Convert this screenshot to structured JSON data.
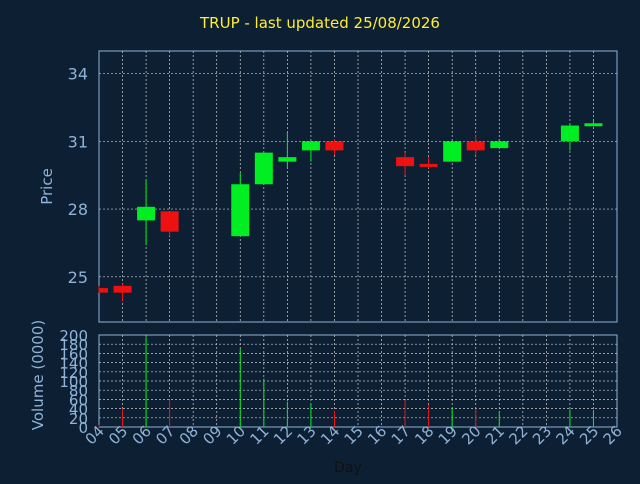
{
  "chart_data": [
    {
      "type": "candlestick",
      "title": "TRUP - last updated 25/08/2026",
      "xlabel": "Day",
      "ylabel": "Price",
      "ylim": [
        23,
        35
      ],
      "yticks": [
        25,
        28,
        31,
        34
      ],
      "grid": true,
      "colors": {
        "up": "#00ee22",
        "down": "#ee1111",
        "background": "#0d1f33",
        "grid": "#cccccc",
        "axis": "#8fb3d9",
        "title": "#ffee33"
      },
      "x_ticks": [
        "04",
        "05",
        "06",
        "07",
        "08",
        "09",
        "10",
        "11",
        "12",
        "13",
        "14",
        "15",
        "16",
        "17",
        "18",
        "19",
        "20",
        "21",
        "22",
        "23",
        "24",
        "25",
        "26"
      ],
      "candles": [
        {
          "day": "04",
          "open": 24.5,
          "close": 24.3,
          "high": 24.6,
          "low": 24.3
        },
        {
          "day": "05",
          "open": 24.6,
          "close": 24.3,
          "high": 24.7,
          "low": 23.9
        },
        {
          "day": "06",
          "open": 27.5,
          "close": 28.1,
          "high": 29.3,
          "low": 26.4
        },
        {
          "day": "07",
          "open": 27.9,
          "close": 27.0,
          "high": 27.9,
          "low": 26.8
        },
        {
          "day": "10",
          "open": 26.8,
          "close": 29.1,
          "high": 29.6,
          "low": 26.8
        },
        {
          "day": "11",
          "open": 29.1,
          "close": 30.5,
          "high": 30.5,
          "low": 29.1
        },
        {
          "day": "12",
          "open": 30.1,
          "close": 30.3,
          "high": 31.4,
          "low": 29.8
        },
        {
          "day": "13",
          "open": 30.6,
          "close": 31.0,
          "high": 31.0,
          "low": 30.1
        },
        {
          "day": "14",
          "open": 31.0,
          "close": 30.6,
          "high": 31.1,
          "low": 30.4
        },
        {
          "day": "17",
          "open": 30.3,
          "close": 29.9,
          "high": 30.5,
          "low": 29.5
        },
        {
          "day": "18",
          "open": 30.0,
          "close": 29.9,
          "high": 30.3,
          "low": 29.8
        },
        {
          "day": "19",
          "open": 30.1,
          "close": 31.0,
          "high": 31.0,
          "low": 30.1
        },
        {
          "day": "20",
          "open": 31.0,
          "close": 30.6,
          "high": 31.3,
          "low": 30.4
        },
        {
          "day": "21",
          "open": 30.7,
          "close": 31.0,
          "high": 31.1,
          "low": 30.7
        },
        {
          "day": "24",
          "open": 31.0,
          "close": 31.7,
          "high": 31.8,
          "low": 30.6
        },
        {
          "day": "25",
          "open": 31.7,
          "close": 31.8,
          "high": 32.0,
          "low": 31.7
        }
      ]
    },
    {
      "type": "bar",
      "ylabel": "Volume (0000)",
      "xlabel": "Day",
      "ylim": [
        0,
        200
      ],
      "yticks": [
        0,
        20,
        40,
        60,
        80,
        100,
        120,
        140,
        160,
        180,
        200
      ],
      "categories": [
        "04",
        "05",
        "06",
        "07",
        "10",
        "11",
        "12",
        "13",
        "14",
        "17",
        "18",
        "19",
        "20",
        "21",
        "24",
        "25"
      ],
      "values": [
        5,
        40,
        195,
        60,
        170,
        105,
        55,
        50,
        35,
        58,
        48,
        42,
        40,
        35,
        38,
        37
      ],
      "directions": [
        "down",
        "down",
        "up",
        "down",
        "up",
        "up",
        "up",
        "up",
        "down",
        "down",
        "down",
        "up",
        "down",
        "up",
        "up",
        "up"
      ]
    }
  ]
}
